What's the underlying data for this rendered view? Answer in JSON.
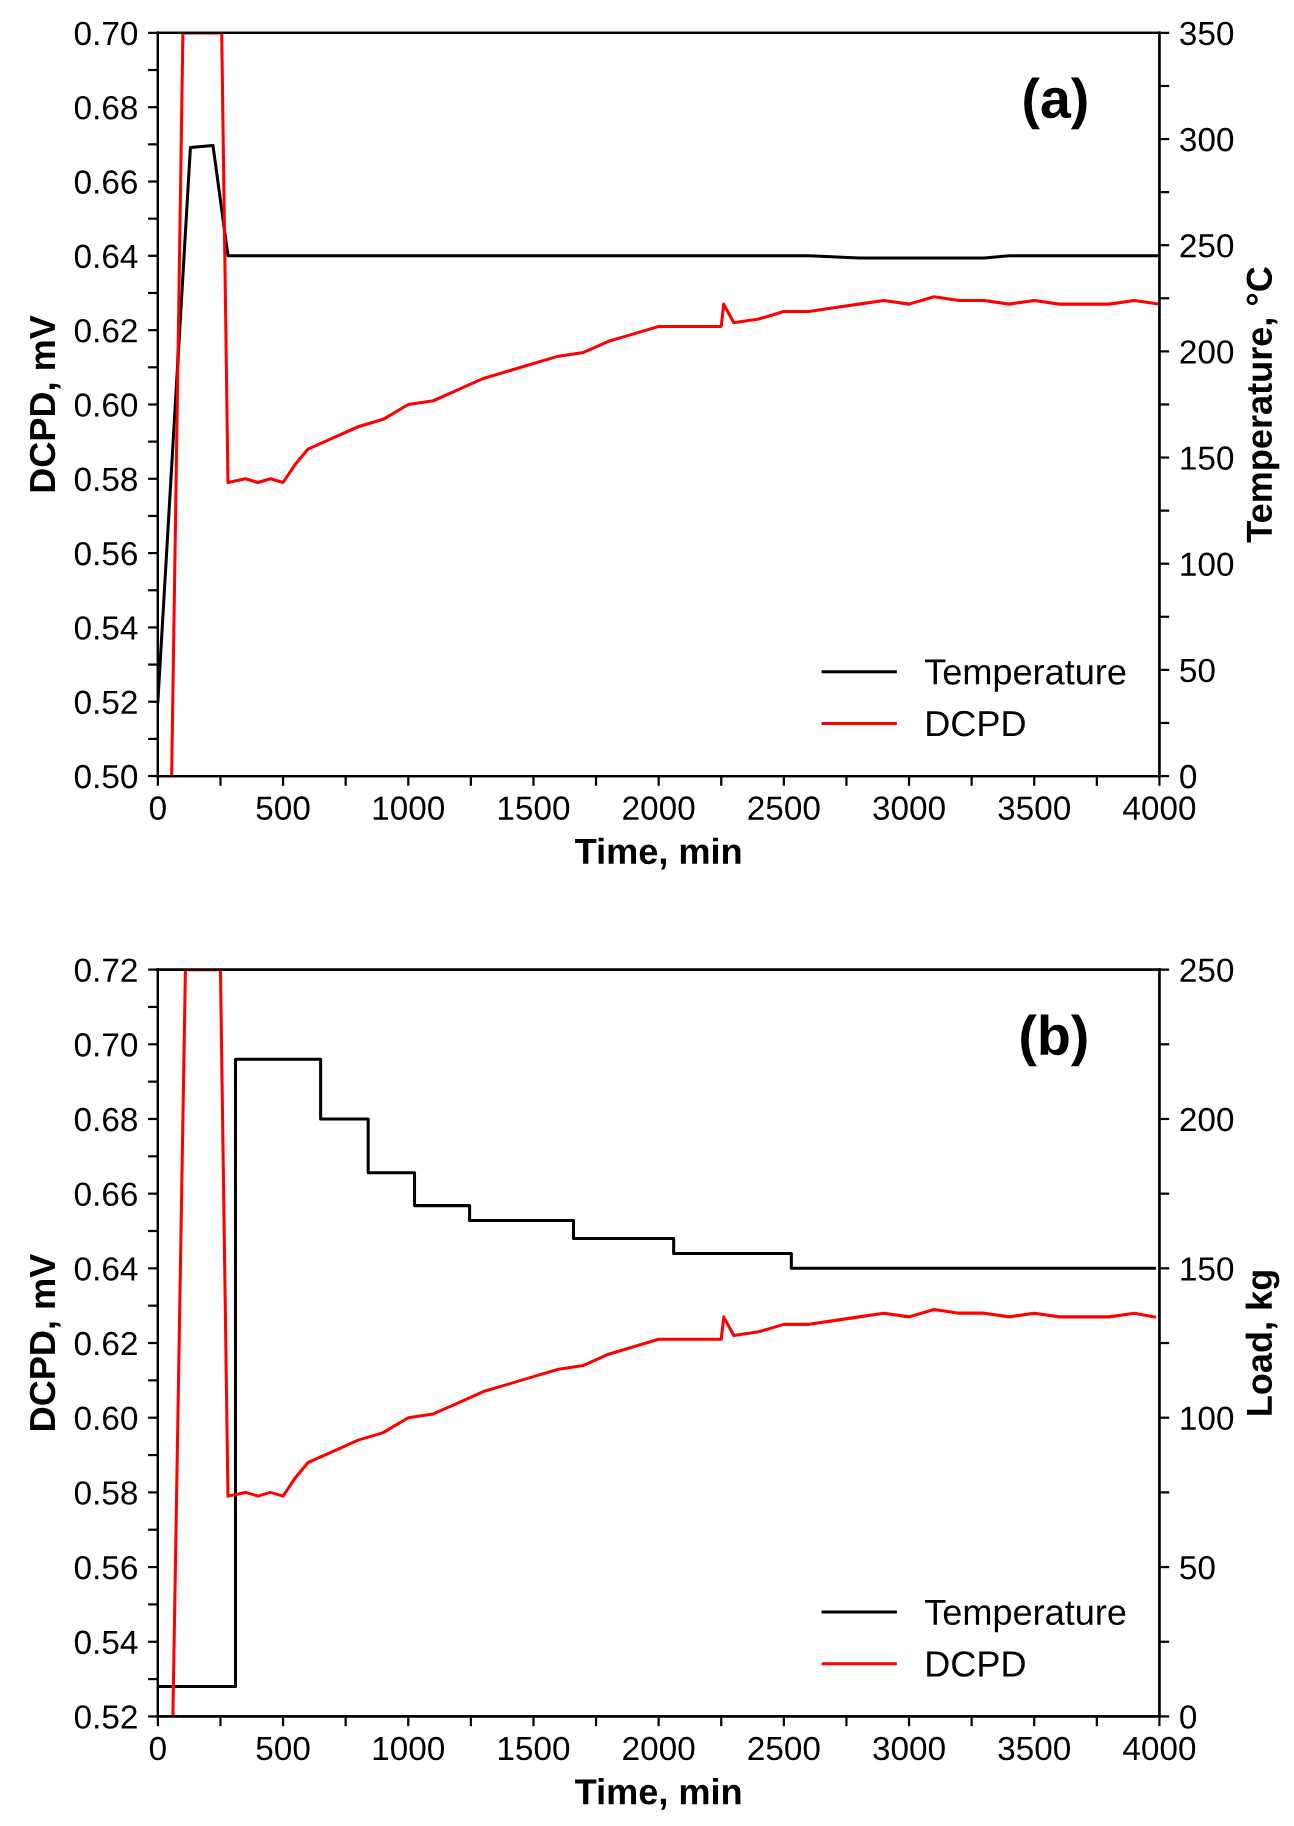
{
  "chart_data": [
    {
      "type": "line",
      "xlabel": "Time, min",
      "ylabel": "DCPD, mV",
      "y2label": "Temperature, °C",
      "annotations": [
        "(a)"
      ],
      "xlim": [
        0,
        4000
      ],
      "xticks": [
        0,
        {
          "value": 250,
          "label": null
        },
        500,
        {
          "value": 750,
          "label": null
        },
        1000,
        {
          "value": 1250,
          "label": null
        },
        1500,
        {
          "value": 1750,
          "label": null
        },
        2000,
        {
          "value": 2250,
          "label": null
        },
        2500,
        {
          "value": 2750,
          "label": null
        },
        3000,
        {
          "value": 3250,
          "label": null
        },
        3500,
        {
          "value": 3750,
          "label": null
        },
        4000
      ],
      "ylim": [
        0.5,
        0.7
      ],
      "yticks": [
        {
          "value": 0.5,
          "label": "0.50"
        },
        {
          "value": 0.51,
          "label": null
        },
        0.52,
        {
          "value": 0.53,
          "label": null
        },
        0.54,
        {
          "value": 0.55,
          "label": null
        },
        0.56,
        {
          "value": 0.57,
          "label": null
        },
        0.58,
        {
          "value": 0.59,
          "label": null
        },
        {
          "value": 0.6,
          "label": "0.60"
        },
        {
          "value": 0.61,
          "label": null
        },
        0.62,
        {
          "value": 0.63,
          "label": null
        },
        0.64,
        {
          "value": 0.65,
          "label": null
        },
        0.66,
        {
          "value": 0.67,
          "label": null
        },
        0.68,
        {
          "value": 0.69,
          "label": null
        },
        {
          "value": 0.7,
          "label": "0.70"
        }
      ],
      "y2lim": [
        0,
        350
      ],
      "y2ticks": [
        0,
        {
          "value": 25,
          "label": null
        },
        50,
        {
          "value": 75,
          "label": null
        },
        100,
        {
          "value": 125,
          "label": null
        },
        150,
        {
          "value": 175,
          "label": null
        },
        200,
        {
          "value": 225,
          "label": null
        },
        250,
        {
          "value": 275,
          "label": null
        },
        300,
        {
          "value": 325,
          "label": null
        },
        350
      ],
      "legend": "bottom right",
      "grid": false,
      "line_style": "solid",
      "marker": "none",
      "series": [
        {
          "name": "Temperature",
          "color": "#000000",
          "axis": "y2",
          "x": [
            0,
            130,
            220,
            280,
            800,
            1500,
            2000,
            2600,
            2800,
            3000,
            3300,
            3400,
            4000
          ],
          "values": [
            35,
            296,
            297,
            245,
            245,
            245,
            245,
            245,
            244,
            244,
            244,
            245,
            245
          ]
        },
        {
          "name": "DCPD",
          "color": "#ff0000",
          "x": [
            55,
            100,
            255,
            280,
            350,
            400,
            450,
            500,
            550,
            600,
            700,
            800,
            850,
            900,
            1000,
            1100,
            1200,
            1300,
            1400,
            1500,
            1600,
            1700,
            1800,
            1900,
            2000,
            2100,
            2250,
            2260,
            2300,
            2400,
            2500,
            2600,
            2700,
            2800,
            2900,
            3000,
            3100,
            3200,
            3300,
            3400,
            3500,
            3600,
            3700,
            3800,
            3900,
            4000
          ],
          "values": [
            0.5,
            0.7,
            0.7,
            0.579,
            0.58,
            0.579,
            0.58,
            0.579,
            0.584,
            0.588,
            0.591,
            0.594,
            0.595,
            0.596,
            0.6,
            0.601,
            0.604,
            0.607,
            0.609,
            0.611,
            0.613,
            0.614,
            0.617,
            0.619,
            0.621,
            0.621,
            0.621,
            0.627,
            0.622,
            0.623,
            0.625,
            0.625,
            0.626,
            0.627,
            0.628,
            0.627,
            0.629,
            0.628,
            0.628,
            0.627,
            0.628,
            0.627,
            0.627,
            0.627,
            0.628,
            0.627
          ]
        }
      ]
    },
    {
      "type": "line",
      "xlabel": "Time, min",
      "ylabel": "DCPD, mV",
      "y2label": "Load, kg",
      "annotations": [
        "(b)"
      ],
      "xlim": [
        0,
        4000
      ],
      "xticks": [
        0,
        {
          "value": 250,
          "label": null
        },
        500,
        {
          "value": 750,
          "label": null
        },
        1000,
        {
          "value": 1250,
          "label": null
        },
        1500,
        {
          "value": 1750,
          "label": null
        },
        2000,
        {
          "value": 2250,
          "label": null
        },
        2500,
        {
          "value": 2750,
          "label": null
        },
        3000,
        {
          "value": 3250,
          "label": null
        },
        3500,
        {
          "value": 3750,
          "label": null
        },
        4000
      ],
      "ylim": [
        0.52,
        0.72
      ],
      "yticks": [
        0.52,
        {
          "value": 0.53,
          "label": null
        },
        0.54,
        {
          "value": 0.55,
          "label": null
        },
        0.56,
        {
          "value": 0.57,
          "label": null
        },
        0.58,
        {
          "value": 0.59,
          "label": null
        },
        {
          "value": 0.6,
          "label": "0.60"
        },
        {
          "value": 0.61,
          "label": null
        },
        0.62,
        {
          "value": 0.63,
          "label": null
        },
        0.64,
        {
          "value": 0.65,
          "label": null
        },
        0.66,
        {
          "value": 0.67,
          "label": null
        },
        0.68,
        {
          "value": 0.69,
          "label": null
        },
        {
          "value": 0.7,
          "label": "0.70"
        },
        {
          "value": 0.71,
          "label": null
        },
        0.72
      ],
      "y2lim": [
        0,
        250
      ],
      "y2ticks": [
        0,
        {
          "value": 25,
          "label": null
        },
        50,
        {
          "value": 75,
          "label": null
        },
        100,
        {
          "value": 125,
          "label": null
        },
        150,
        {
          "value": 175,
          "label": null
        },
        200,
        {
          "value": 225,
          "label": null
        },
        250
      ],
      "legend": "bottom right",
      "grid": false,
      "line_style": "solid",
      "marker": "none",
      "series": [
        {
          "name": "Temperature",
          "color": "#000000",
          "axis": "y2",
          "type": "step",
          "x": [
            0,
            310,
            650,
            840,
            1025,
            1245,
            1660,
            2060,
            2530,
            3980
          ],
          "values": [
            10,
            220,
            200,
            182,
            171,
            166,
            160,
            155,
            150,
            150
          ]
        },
        {
          "name": "DCPD",
          "color": "#ff0000",
          "x": [
            60,
            110,
            250,
            280,
            350,
            400,
            450,
            500,
            550,
            600,
            700,
            800,
            850,
            900,
            1000,
            1100,
            1200,
            1300,
            1400,
            1500,
            1600,
            1700,
            1800,
            1900,
            2000,
            2100,
            2250,
            2260,
            2300,
            2400,
            2500,
            2600,
            2700,
            2800,
            2900,
            3000,
            3100,
            3200,
            3300,
            3400,
            3500,
            3600,
            3700,
            3800,
            3900,
            3980
          ],
          "values": [
            0.52,
            0.72,
            0.72,
            0.579,
            0.58,
            0.579,
            0.58,
            0.579,
            0.584,
            0.588,
            0.591,
            0.594,
            0.595,
            0.596,
            0.6,
            0.601,
            0.604,
            0.607,
            0.609,
            0.611,
            0.613,
            0.614,
            0.617,
            0.619,
            0.621,
            0.621,
            0.621,
            0.627,
            0.622,
            0.623,
            0.625,
            0.625,
            0.626,
            0.627,
            0.628,
            0.627,
            0.629,
            0.628,
            0.628,
            0.627,
            0.628,
            0.627,
            0.627,
            0.627,
            0.628,
            0.627
          ]
        }
      ]
    }
  ]
}
